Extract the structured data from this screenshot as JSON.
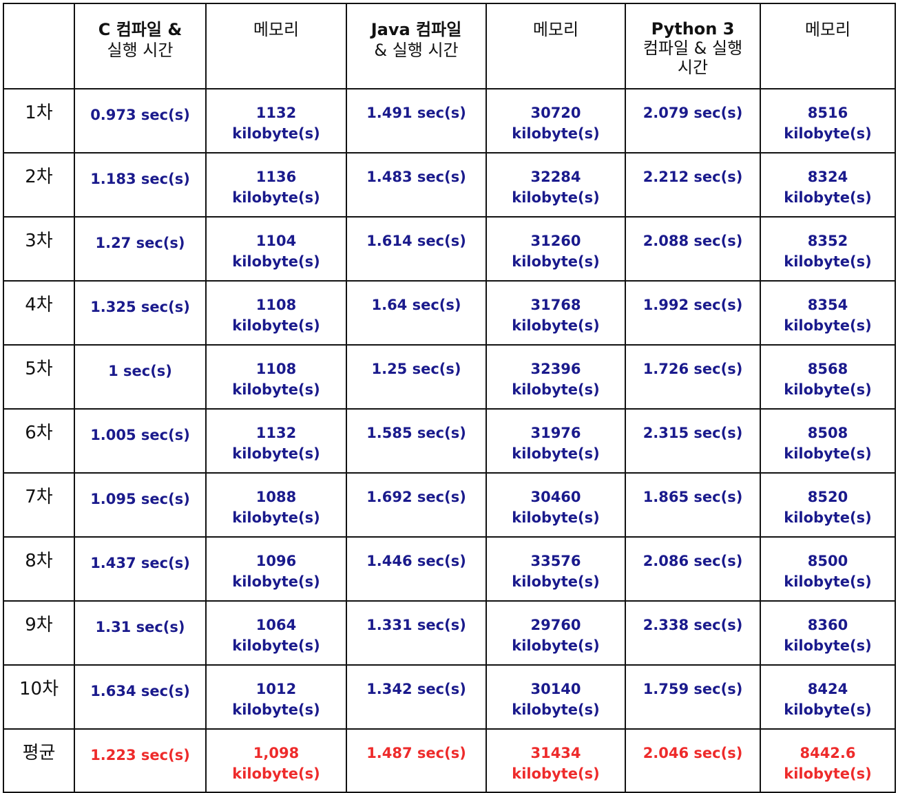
{
  "headers": {
    "c_time_line1": "C 컴파일 &",
    "c_time_line2": "실행 시간",
    "mem1": "메모리",
    "java_time_line1": "Java 컴파일",
    "java_time_line2": "& 실행 시간",
    "mem2": "메모리",
    "py_time_line1": "Python 3",
    "py_time_line2": "컴파일 & 실행",
    "py_time_line3": "시간",
    "mem3": "메모리"
  },
  "rows": [
    {
      "label": "1차",
      "c": "0.973 sec(s)",
      "c_mem": "1132",
      "java": "1.491 sec(s)",
      "java_mem": "30720",
      "py": "2.079 sec(s)",
      "py_mem": "8516",
      "unit": "kilobyte(s)"
    },
    {
      "label": "2차",
      "c": "1.183 sec(s)",
      "c_mem": "1136",
      "java": "1.483 sec(s)",
      "java_mem": "32284",
      "py": "2.212 sec(s)",
      "py_mem": "8324",
      "unit": "kilobyte(s)"
    },
    {
      "label": "3차",
      "c": "1.27 sec(s)",
      "c_mem": "1104",
      "java": "1.614 sec(s)",
      "java_mem": "31260",
      "py": "2.088 sec(s)",
      "py_mem": "8352",
      "unit": "kilobyte(s)"
    },
    {
      "label": "4차",
      "c": "1.325 sec(s)",
      "c_mem": "1108",
      "java": "1.64 sec(s)",
      "java_mem": "31768",
      "py": "1.992 sec(s)",
      "py_mem": "8354",
      "unit": "kilobyte(s)"
    },
    {
      "label": "5차",
      "c": "1 sec(s)",
      "c_mem": "1108",
      "java": "1.25 sec(s)",
      "java_mem": "32396",
      "py": "1.726 sec(s)",
      "py_mem": "8568",
      "unit": "kilobyte(s)"
    },
    {
      "label": "6차",
      "c": "1.005 sec(s)",
      "c_mem": "1132",
      "java": "1.585 sec(s)",
      "java_mem": "31976",
      "py": "2.315 sec(s)",
      "py_mem": "8508",
      "unit": "kilobyte(s)"
    },
    {
      "label": "7차",
      "c": "1.095 sec(s)",
      "c_mem": "1088",
      "java": "1.692 sec(s)",
      "java_mem": "30460",
      "py": "1.865 sec(s)",
      "py_mem": "8520",
      "unit": "kilobyte(s)"
    },
    {
      "label": "8차",
      "c": "1.437 sec(s)",
      "c_mem": "1096",
      "java": "1.446 sec(s)",
      "java_mem": "33576",
      "py": "2.086 sec(s)",
      "py_mem": "8500",
      "unit": "kilobyte(s)"
    },
    {
      "label": "9차",
      "c": "1.31 sec(s)",
      "c_mem": "1064",
      "java": "1.331 sec(s)",
      "java_mem": "29760",
      "py": "2.338 sec(s)",
      "py_mem": "8360",
      "unit": "kilobyte(s)"
    },
    {
      "label": "10차",
      "c": "1.634 sec(s)",
      "c_mem": "1012",
      "java": "1.342 sec(s)",
      "java_mem": "30140",
      "py": "1.759 sec(s)",
      "py_mem": "8424",
      "unit": "kilobyte(s)"
    }
  ],
  "average": {
    "label": "평균",
    "c": "1.223 sec(s)",
    "c_mem": "1,098",
    "java": "1.487 sec(s)",
    "java_mem": "31434",
    "py": "2.046 sec(s)",
    "py_mem": "8442.6",
    "unit": "kilobyte(s)"
  },
  "colors": {
    "value_text": "#1a1a8c",
    "average_text": "#ee2b2b",
    "border": "#111111"
  }
}
